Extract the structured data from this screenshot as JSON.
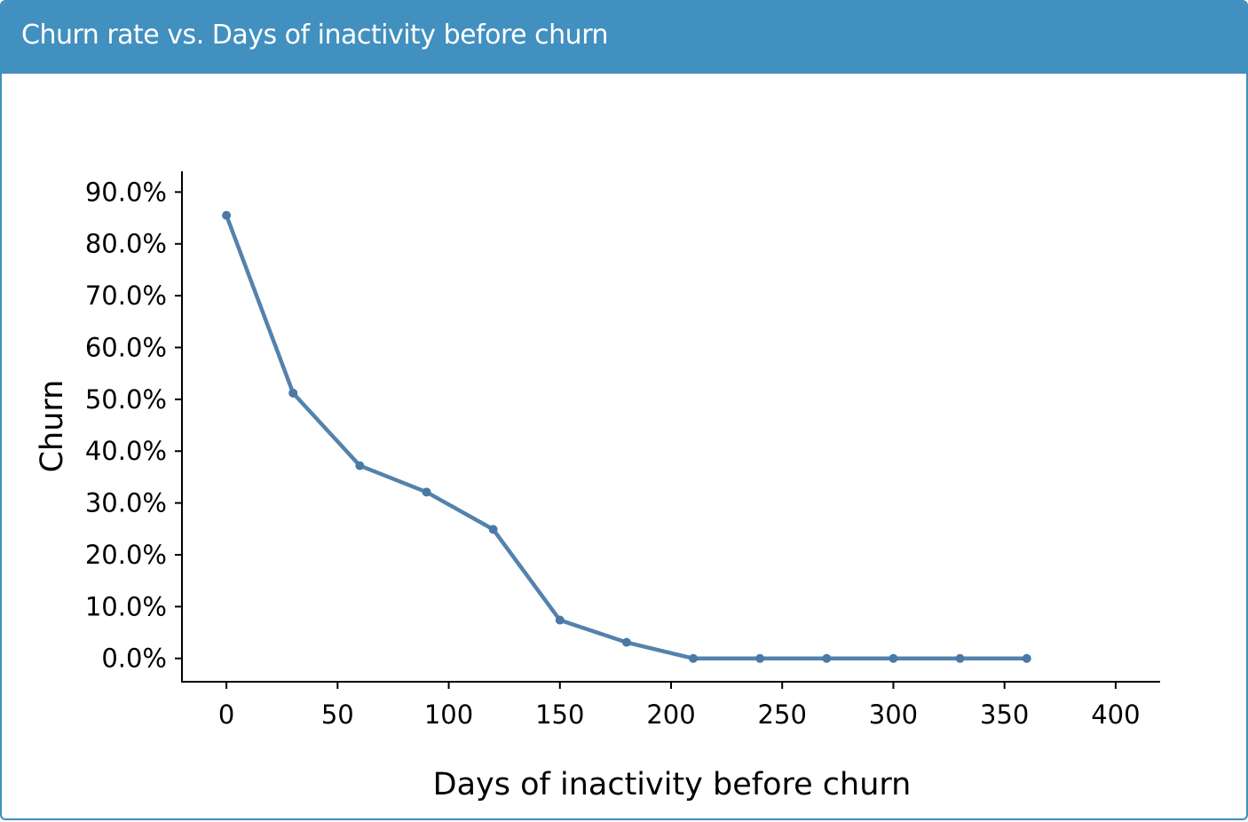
{
  "panel": {
    "title": "Churn rate vs. Days of inactivity before churn",
    "header_color": "#4190bf"
  },
  "chart_data": {
    "type": "line",
    "xlabel": "Days of inactivity before churn",
    "ylabel": "Churn",
    "xlim": [
      -20,
      420
    ],
    "ylim": [
      -4.5,
      94
    ],
    "x_ticks": [
      0,
      50,
      100,
      150,
      200,
      250,
      300,
      350,
      400
    ],
    "x_tick_labels": [
      "0",
      "50",
      "100",
      "150",
      "200",
      "250",
      "300",
      "350",
      "400"
    ],
    "y_ticks": [
      0,
      10,
      20,
      30,
      40,
      50,
      60,
      70,
      80,
      90
    ],
    "y_tick_labels": [
      "0.0%",
      "10.0%",
      "20.0%",
      "30.0%",
      "40.0%",
      "50.0%",
      "60.0%",
      "70.0%",
      "80.0%",
      "90.0%"
    ],
    "grid": false,
    "series": [
      {
        "color": "#5482ad",
        "x": [
          0,
          30,
          60,
          90,
          120,
          150,
          180,
          210,
          240,
          270,
          300,
          330,
          360
        ],
        "y": [
          85.5,
          51.2,
          37.2,
          32.1,
          24.9,
          7.4,
          3.1,
          0.0,
          0.0,
          0.0,
          0.0,
          0.0,
          0.0
        ]
      }
    ]
  }
}
